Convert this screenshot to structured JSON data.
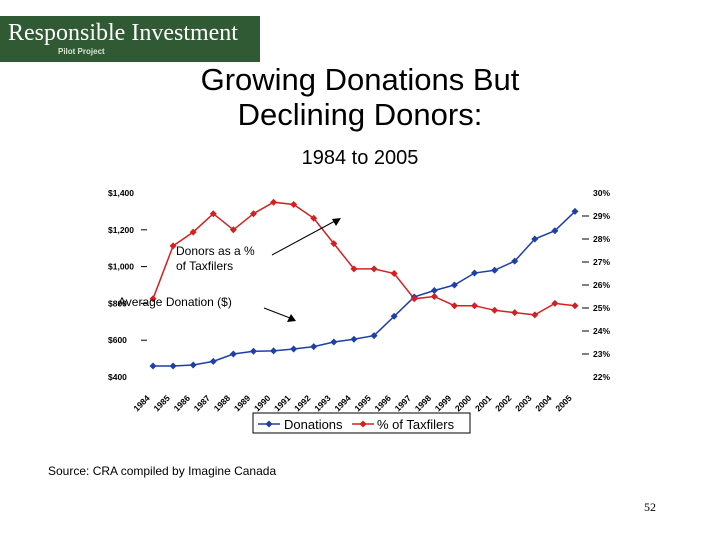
{
  "logo": {
    "main": "Responsible Investment",
    "sub": "Pilot Project"
  },
  "title_line1": "Growing Donations But",
  "title_line2": "Declining Donors:",
  "subtitle": "1984 to 2005",
  "source": "Source: CRA compiled by Imagine Canada",
  "page_number": "52",
  "colors": {
    "logo_bg": "#2f5a33",
    "donations": "#1f3fa6",
    "taxfilers": "#d42020"
  },
  "chart_data": {
    "type": "line",
    "x": [
      "1984",
      "1985",
      "1986",
      "1987",
      "1988",
      "1989",
      "1990",
      "1991",
      "1992",
      "1993",
      "1994",
      "1995",
      "1996",
      "1997",
      "1998",
      "1999",
      "2000",
      "2001",
      "2002",
      "2003",
      "2004",
      "2005"
    ],
    "series": [
      {
        "name": "Donations",
        "axis": "left",
        "values": [
          460,
          460,
          465,
          485,
          525,
          540,
          542,
          552,
          565,
          590,
          605,
          625,
          730,
          835,
          870,
          900,
          965,
          980,
          1030,
          1150,
          1195,
          1300
        ]
      },
      {
        "name": "% of Taxfilers",
        "axis": "right",
        "values": [
          25.4,
          27.7,
          28.3,
          29.1,
          28.4,
          29.1,
          29.6,
          29.5,
          28.9,
          27.8,
          26.7,
          26.7,
          26.5,
          25.4,
          25.5,
          25.1,
          25.1,
          24.9,
          24.8,
          24.7,
          25.2,
          25.1
        ]
      }
    ],
    "yleft": {
      "range": [
        400,
        1400
      ],
      "ticks": [
        "$400",
        "$600",
        "$800",
        "$1,000",
        "$1,200",
        "$1,400"
      ]
    },
    "yright": {
      "range": [
        22,
        30
      ],
      "ticks": [
        "22%",
        "23%",
        "24%",
        "25%",
        "26%",
        "27%",
        "28%",
        "29%",
        "30%"
      ]
    },
    "annotations": [
      "Donors as a % of Taxfilers",
      "Average Donation ($)"
    ],
    "legend": {
      "position": "bottom",
      "items": [
        "Donations",
        "% of Taxfilers"
      ]
    },
    "grid": false
  }
}
